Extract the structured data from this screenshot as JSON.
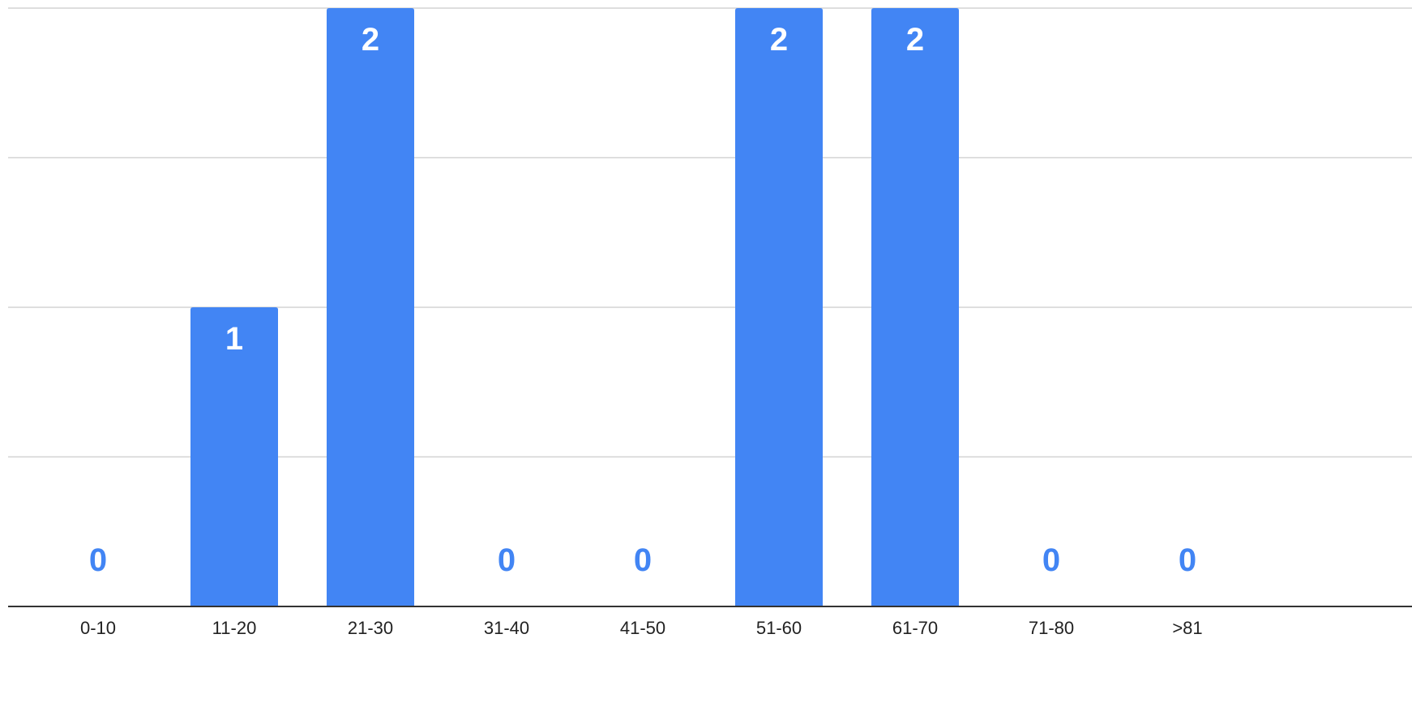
{
  "chart_data": {
    "type": "bar",
    "categories": [
      "0-10",
      "11-20",
      "21-30",
      "31-40",
      "41-50",
      "51-60",
      "61-70",
      "71-80",
      ">81"
    ],
    "values": [
      0,
      1,
      2,
      0,
      0,
      2,
      2,
      0,
      0
    ],
    "data_labels": [
      "0",
      "1",
      "2",
      "0",
      "0",
      "2",
      "2",
      "0",
      "0"
    ],
    "title": "",
    "xlabel": "",
    "ylabel": "",
    "ylim": [
      0,
      2
    ],
    "grid": true,
    "legend": "none",
    "colors": {
      "bar": "#4285f4",
      "label_inside": "#ffffff",
      "label_zero": "#4285f4",
      "gridline": "#d3d3d3",
      "axis": "#333333"
    }
  }
}
